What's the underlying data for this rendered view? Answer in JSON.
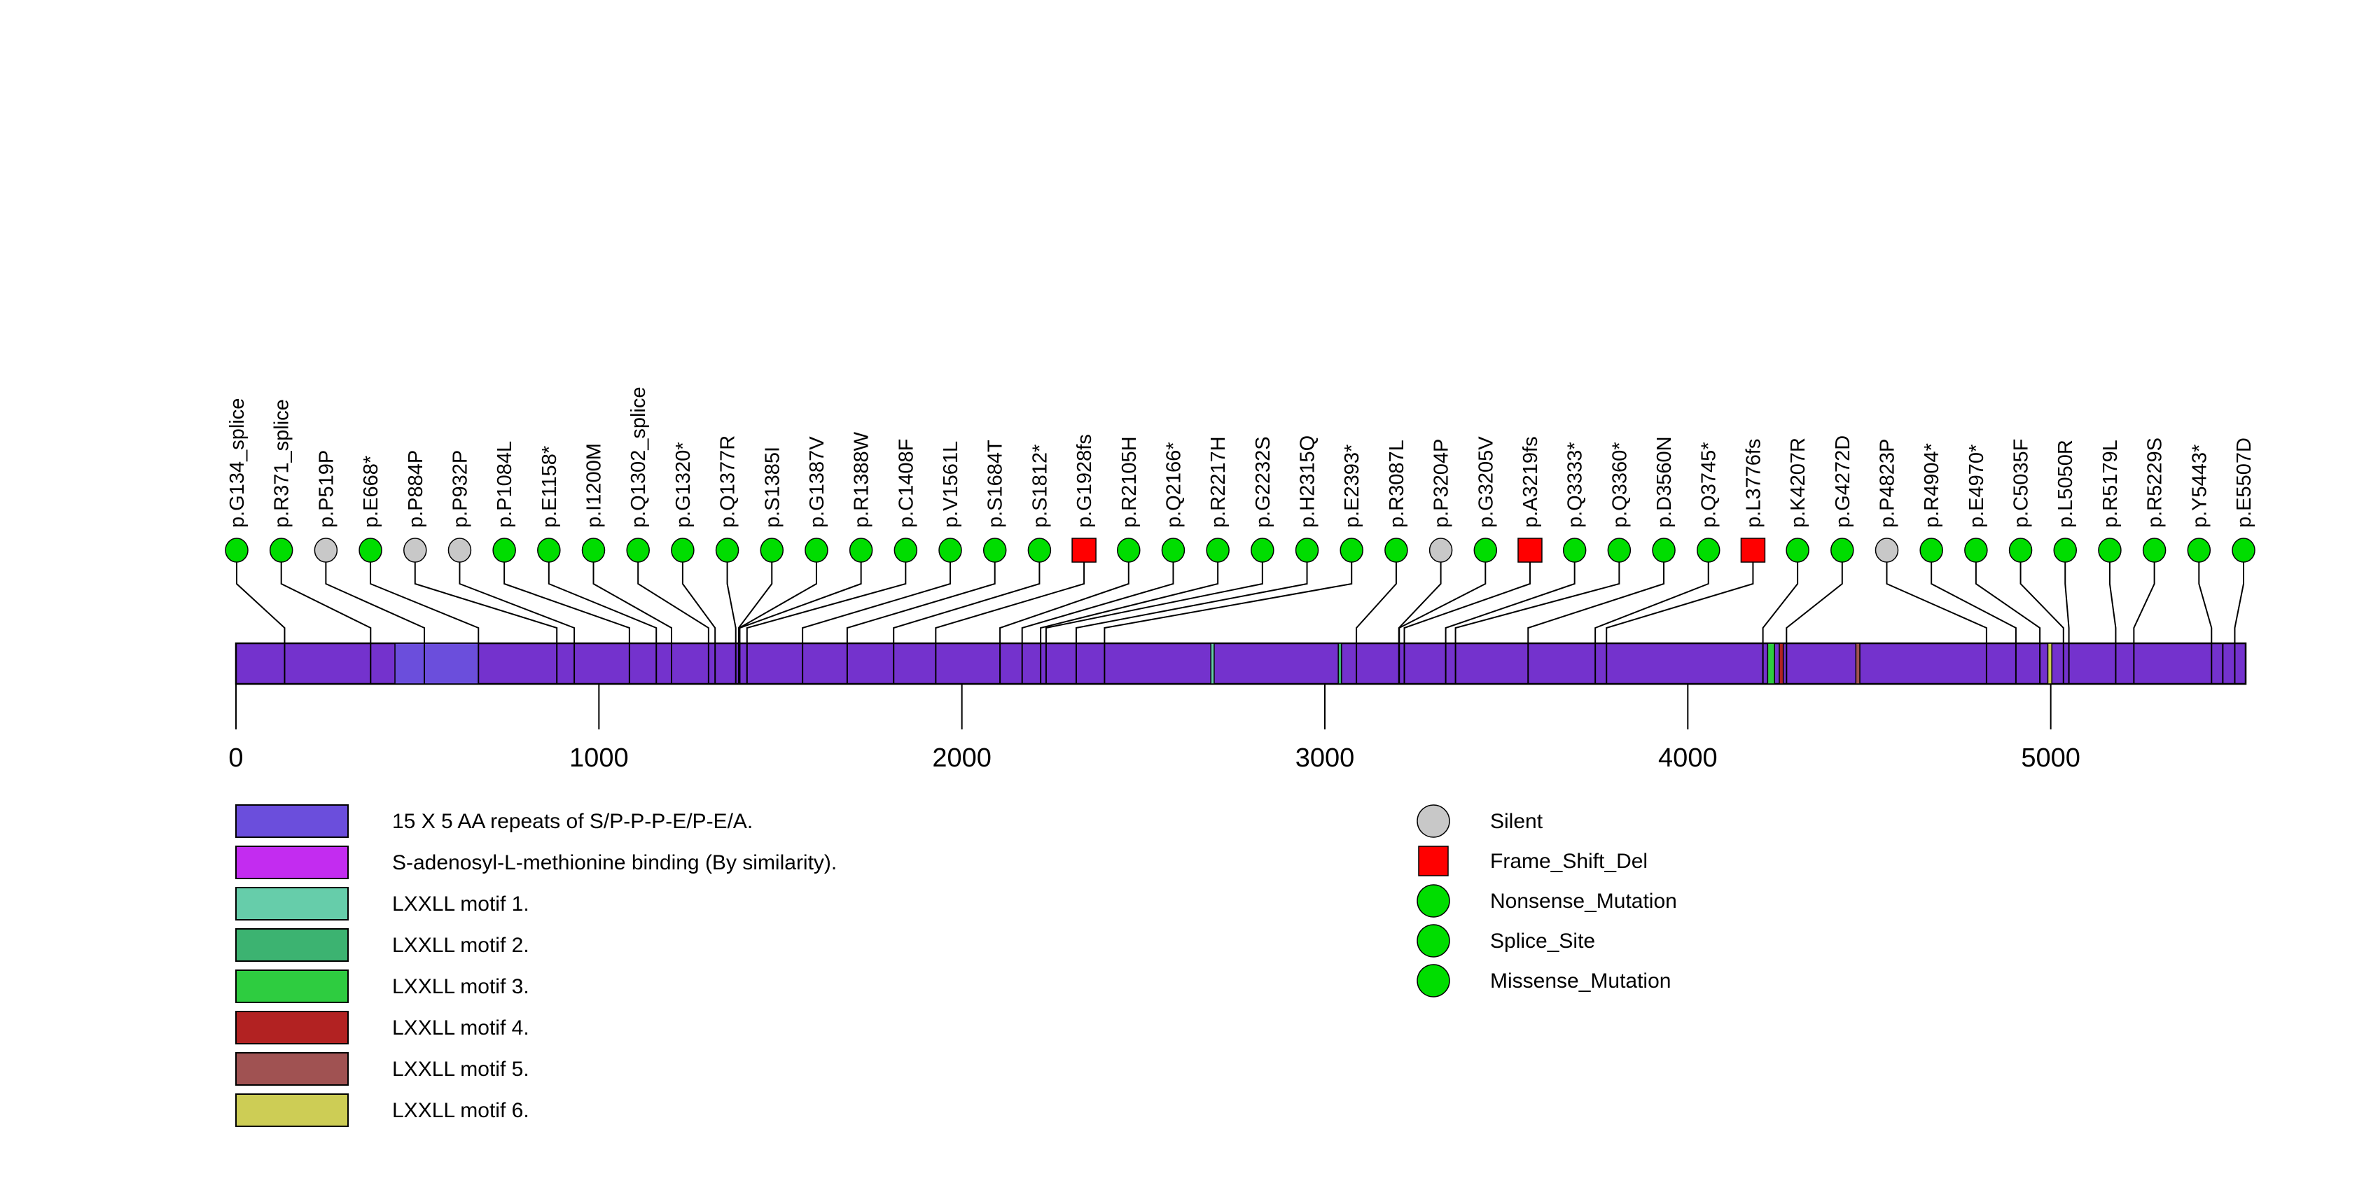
{
  "figure": {
    "kind": "protein-mutation-lollipop-plot",
    "background": "#ffffff"
  },
  "chart_data": {
    "type": "lollipop",
    "protein_length": 5537,
    "xlabel": "",
    "ylabel": "",
    "axis_ticks": [
      0,
      1000,
      2000,
      3000,
      4000,
      5000
    ],
    "protein_bar_color": "#7432CD",
    "mutation_classes": {
      "Silent": {
        "color": "#C8C8C8",
        "shape": "circle"
      },
      "Frame_Shift_Del": {
        "color": "#FF0000",
        "shape": "square"
      },
      "Nonsense_Mutation": {
        "color": "#00DD00",
        "shape": "circle"
      },
      "Splice_Site": {
        "color": "#00DD00",
        "shape": "circle"
      },
      "Missense_Mutation": {
        "color": "#00DD00",
        "shape": "circle"
      }
    },
    "mutations": [
      {
        "label": "p.G134_splice",
        "pos": 134,
        "class": "Splice_Site"
      },
      {
        "label": "p.R371_splice",
        "pos": 371,
        "class": "Splice_Site"
      },
      {
        "label": "p.P519P",
        "pos": 519,
        "class": "Silent"
      },
      {
        "label": "p.E668*",
        "pos": 668,
        "class": "Nonsense_Mutation"
      },
      {
        "label": "p.P884P",
        "pos": 884,
        "class": "Silent"
      },
      {
        "label": "p.P932P",
        "pos": 932,
        "class": "Silent"
      },
      {
        "label": "p.P1084L",
        "pos": 1084,
        "class": "Missense_Mutation"
      },
      {
        "label": "p.E1158*",
        "pos": 1158,
        "class": "Nonsense_Mutation"
      },
      {
        "label": "p.I1200M",
        "pos": 1200,
        "class": "Missense_Mutation"
      },
      {
        "label": "p.Q1302_splice",
        "pos": 1302,
        "class": "Splice_Site"
      },
      {
        "label": "p.G1320*",
        "pos": 1320,
        "class": "Nonsense_Mutation"
      },
      {
        "label": "p.Q1377R",
        "pos": 1377,
        "class": "Missense_Mutation"
      },
      {
        "label": "p.S1385I",
        "pos": 1385,
        "class": "Missense_Mutation"
      },
      {
        "label": "p.G1387V",
        "pos": 1387,
        "class": "Missense_Mutation"
      },
      {
        "label": "p.R1388W",
        "pos": 1388,
        "class": "Missense_Mutation"
      },
      {
        "label": "p.C1408F",
        "pos": 1408,
        "class": "Missense_Mutation"
      },
      {
        "label": "p.V1561L",
        "pos": 1561,
        "class": "Missense_Mutation"
      },
      {
        "label": "p.S1684T",
        "pos": 1684,
        "class": "Missense_Mutation"
      },
      {
        "label": "p.S1812*",
        "pos": 1812,
        "class": "Nonsense_Mutation"
      },
      {
        "label": "p.G1928fs",
        "pos": 1928,
        "class": "Frame_Shift_Del"
      },
      {
        "label": "p.R2105H",
        "pos": 2105,
        "class": "Missense_Mutation"
      },
      {
        "label": "p.Q2166*",
        "pos": 2166,
        "class": "Nonsense_Mutation"
      },
      {
        "label": "p.R2217H",
        "pos": 2217,
        "class": "Missense_Mutation"
      },
      {
        "label": "p.G2232S",
        "pos": 2232,
        "class": "Missense_Mutation"
      },
      {
        "label": "p.H2315Q",
        "pos": 2315,
        "class": "Missense_Mutation"
      },
      {
        "label": "p.E2393*",
        "pos": 2393,
        "class": "Nonsense_Mutation"
      },
      {
        "label": "p.R3087L",
        "pos": 3087,
        "class": "Missense_Mutation"
      },
      {
        "label": "p.P3204P",
        "pos": 3204,
        "class": "Silent"
      },
      {
        "label": "p.G3205V",
        "pos": 3205,
        "class": "Missense_Mutation"
      },
      {
        "label": "p.A3219fs",
        "pos": 3219,
        "class": "Frame_Shift_Del"
      },
      {
        "label": "p.Q3333*",
        "pos": 3333,
        "class": "Nonsense_Mutation"
      },
      {
        "label": "p.Q3360*",
        "pos": 3360,
        "class": "Nonsense_Mutation"
      },
      {
        "label": "p.D3560N",
        "pos": 3560,
        "class": "Missense_Mutation"
      },
      {
        "label": "p.Q3745*",
        "pos": 3745,
        "class": "Nonsense_Mutation"
      },
      {
        "label": "p.L3776fs",
        "pos": 3776,
        "class": "Frame_Shift_Del"
      },
      {
        "label": "p.K4207R",
        "pos": 4207,
        "class": "Missense_Mutation"
      },
      {
        "label": "p.G4272D",
        "pos": 4272,
        "class": "Missense_Mutation"
      },
      {
        "label": "p.P4823P",
        "pos": 4823,
        "class": "Silent"
      },
      {
        "label": "p.R4904*",
        "pos": 4904,
        "class": "Nonsense_Mutation"
      },
      {
        "label": "p.E4970*",
        "pos": 4970,
        "class": "Nonsense_Mutation"
      },
      {
        "label": "p.C5035F",
        "pos": 5035,
        "class": "Missense_Mutation"
      },
      {
        "label": "p.L5050R",
        "pos": 5050,
        "class": "Missense_Mutation"
      },
      {
        "label": "p.R5179L",
        "pos": 5179,
        "class": "Missense_Mutation"
      },
      {
        "label": "p.R5229S",
        "pos": 5229,
        "class": "Missense_Mutation"
      },
      {
        "label": "p.Y5443*",
        "pos": 5443,
        "class": "Nonsense_Mutation"
      },
      {
        "label": "p.E5507D",
        "pos": 5507,
        "class": "Missense_Mutation"
      }
    ],
    "domains_drawn": [
      {
        "name": "15 X 5 AA repeats of S/P-P-P-E/P-E/A.",
        "start": 438,
        "end": 668,
        "color": "#6B4EDC"
      },
      {
        "name": "LXXLL motif 1.",
        "start": 2686,
        "end": 2695,
        "color": "#66CDAA"
      },
      {
        "name": "LXXLL motif 2.",
        "start": 3037,
        "end": 3046,
        "color": "#3CB371"
      },
      {
        "name": "LXXLL motif 3.",
        "start": 4220,
        "end": 4239,
        "color": "#2ECC40"
      },
      {
        "name": "LXXLL motif 4.",
        "start": 4252,
        "end": 4263,
        "color": "#B22222"
      },
      {
        "name": "LXXLL motif 5.",
        "start": 4463,
        "end": 4474,
        "color": "#A05252"
      },
      {
        "name": "LXXLL motif 6.",
        "start": 4992,
        "end": 5003,
        "color": "#CDCD55"
      }
    ],
    "extra_boundaries": [
      5474
    ],
    "legend_left": [
      {
        "label": "15 X 5 AA repeats of S/P-P-P-E/P-E/A.",
        "color": "#6B4EDC"
      },
      {
        "label": "S-adenosyl-L-methionine binding (By similarity).",
        "color": "#C32CF0"
      },
      {
        "label": "LXXLL motif 1.",
        "color": "#66CDAA"
      },
      {
        "label": "LXXLL motif 2.",
        "color": "#3CB371"
      },
      {
        "label": "LXXLL motif 3.",
        "color": "#2ECC40"
      },
      {
        "label": "LXXLL motif 4.",
        "color": "#B22222"
      },
      {
        "label": "LXXLL motif 5.",
        "color": "#A05252"
      },
      {
        "label": "LXXLL motif 6.",
        "color": "#CDCD55"
      }
    ],
    "legend_right": [
      {
        "label": "Silent",
        "color": "#C8C8C8",
        "shape": "circle"
      },
      {
        "label": "Frame_Shift_Del",
        "color": "#FF0000",
        "shape": "square"
      },
      {
        "label": "Nonsense_Mutation",
        "color": "#00DD00",
        "shape": "circle"
      },
      {
        "label": "Splice_Site",
        "color": "#00DD00",
        "shape": "circle"
      },
      {
        "label": "Missense_Mutation",
        "color": "#00DD00",
        "shape": "circle"
      }
    ]
  }
}
